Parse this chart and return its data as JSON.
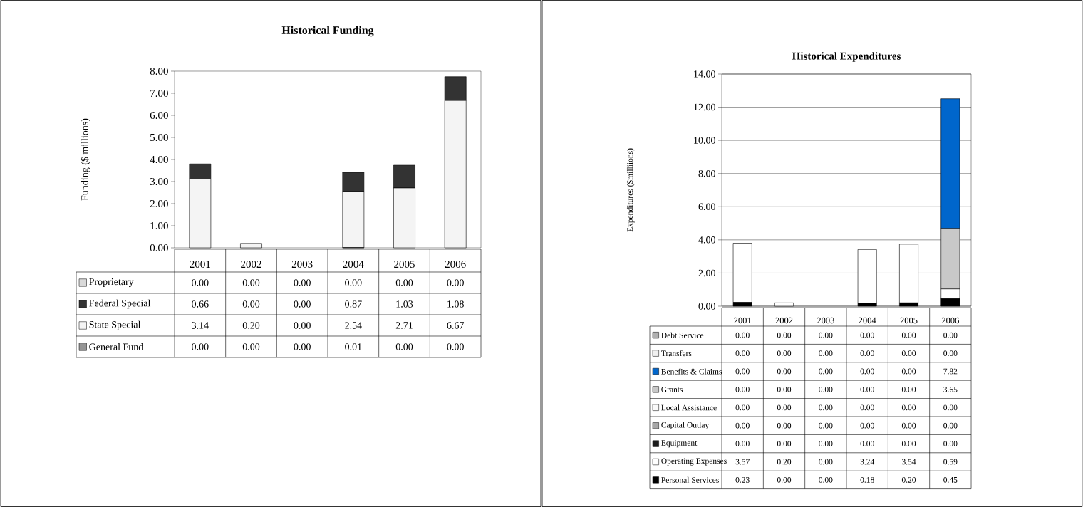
{
  "chart_data": [
    {
      "type": "bar",
      "title": "Historical Funding",
      "ylabel": "Funding        ($ millions)",
      "categories": [
        "2001",
        "2002",
        "2003",
        "2004",
        "2005",
        "2006"
      ],
      "stacked": true,
      "legend": "bottom",
      "grid": false,
      "ylim": [
        0,
        8
      ],
      "yticks": [
        {
          "value": 0,
          "label": "0.00"
        },
        {
          "value": 1,
          "label": "1.00"
        },
        {
          "value": 2,
          "label": "2.00"
        },
        {
          "value": 3,
          "label": "3.00"
        },
        {
          "value": 4,
          "label": "4.00"
        },
        {
          "value": 5,
          "label": "5.00"
        },
        {
          "value": 6,
          "label": "6.00"
        },
        {
          "value": 7,
          "label": "7.00"
        },
        {
          "value": 8,
          "label": "8.00"
        }
      ],
      "series": [
        {
          "name": "General Fund",
          "color": "#969696",
          "values": [
            0,
            0,
            0,
            0.01,
            0,
            0
          ],
          "value_labels": [
            "0.00",
            "0.00",
            "0.00",
            "0.01",
            "0.00",
            "0.00"
          ]
        },
        {
          "name": "State Special",
          "color": "#f4f4f4",
          "values": [
            3.14,
            0.2,
            0,
            2.54,
            2.71,
            6.67
          ],
          "value_labels": [
            "3.14",
            "0.20",
            "0.00",
            "2.54",
            "2.71",
            "6.67"
          ]
        },
        {
          "name": "Federal Special",
          "color": "#333333",
          "values": [
            0.66,
            0,
            0,
            0.87,
            1.03,
            1.08
          ],
          "value_labels": [
            "0.66",
            "0.00",
            "0.00",
            "0.87",
            "1.03",
            "1.08"
          ]
        },
        {
          "name": "Proprietary",
          "color": "#d9d9d9",
          "values": [
            0,
            0,
            0,
            0,
            0,
            0
          ],
          "value_labels": [
            "0.00",
            "0.00",
            "0.00",
            "0.00",
            "0.00",
            "0.00"
          ]
        }
      ]
    },
    {
      "type": "bar",
      "title": "Historical Expenditures",
      "ylabel": "Expenditures        ($milliions)",
      "categories": [
        "2001",
        "2002",
        "2003",
        "2004",
        "2005",
        "2006"
      ],
      "stacked": true,
      "legend": "bottom",
      "grid": "y",
      "ylim": [
        0,
        14
      ],
      "yticks": [
        {
          "value": 0,
          "label": "0.00"
        },
        {
          "value": 2,
          "label": "2.00"
        },
        {
          "value": 4,
          "label": "4.00"
        },
        {
          "value": 6,
          "label": "6.00"
        },
        {
          "value": 8,
          "label": "8.00"
        },
        {
          "value": 10,
          "label": "10.00"
        },
        {
          "value": 12,
          "label": "12.00"
        },
        {
          "value": 14,
          "label": "14.00"
        }
      ],
      "series": [
        {
          "name": "Personal Services",
          "color": "#000000",
          "values": [
            0.23,
            0,
            0,
            0.18,
            0.2,
            0.45
          ],
          "value_labels": [
            "0.23",
            "0.00",
            "0.00",
            "0.18",
            "0.20",
            "0.45"
          ]
        },
        {
          "name": "Operating Expenses",
          "color": "#ffffff",
          "values": [
            3.57,
            0.2,
            0,
            3.24,
            3.54,
            0.59
          ],
          "value_labels": [
            "3.57",
            "0.20",
            "0.00",
            "3.24",
            "3.54",
            "0.59"
          ]
        },
        {
          "name": "Equipment",
          "color": "#1a1a1a",
          "values": [
            0,
            0,
            0,
            0,
            0,
            0
          ],
          "value_labels": [
            "0.00",
            "0.00",
            "0.00",
            "0.00",
            "0.00",
            "0.00"
          ]
        },
        {
          "name": "Capital Outlay",
          "color": "#a6a6a6",
          "values": [
            0,
            0,
            0,
            0,
            0,
            0
          ],
          "value_labels": [
            "0.00",
            "0.00",
            "0.00",
            "0.00",
            "0.00",
            "0.00"
          ]
        },
        {
          "name": "Local Assistance",
          "color": "#fafafa",
          "values": [
            0,
            0,
            0,
            0,
            0,
            0
          ],
          "value_labels": [
            "0.00",
            "0.00",
            "0.00",
            "0.00",
            "0.00",
            "0.00"
          ]
        },
        {
          "name": "Grants",
          "color": "#c8c8c8",
          "values": [
            0,
            0,
            0,
            0,
            0,
            3.65
          ],
          "value_labels": [
            "0.00",
            "0.00",
            "0.00",
            "0.00",
            "0.00",
            "3.65"
          ]
        },
        {
          "name": "Benefits & Claims",
          "color": "#0066cc",
          "values": [
            0,
            0,
            0,
            0,
            0,
            7.82
          ],
          "value_labels": [
            "0.00",
            "0.00",
            "0.00",
            "0.00",
            "0.00",
            "7.82"
          ]
        },
        {
          "name": "Transfers",
          "color": "#f0f0f0",
          "values": [
            0,
            0,
            0,
            0,
            0,
            0
          ],
          "value_labels": [
            "0.00",
            "0.00",
            "0.00",
            "0.00",
            "0.00",
            "0.00"
          ]
        },
        {
          "name": "Debt Service",
          "color": "#b0b0b0",
          "values": [
            0,
            0,
            0,
            0,
            0,
            0
          ],
          "value_labels": [
            "0.00",
            "0.00",
            "0.00",
            "0.00",
            "0.00",
            "0.00"
          ]
        }
      ]
    }
  ]
}
